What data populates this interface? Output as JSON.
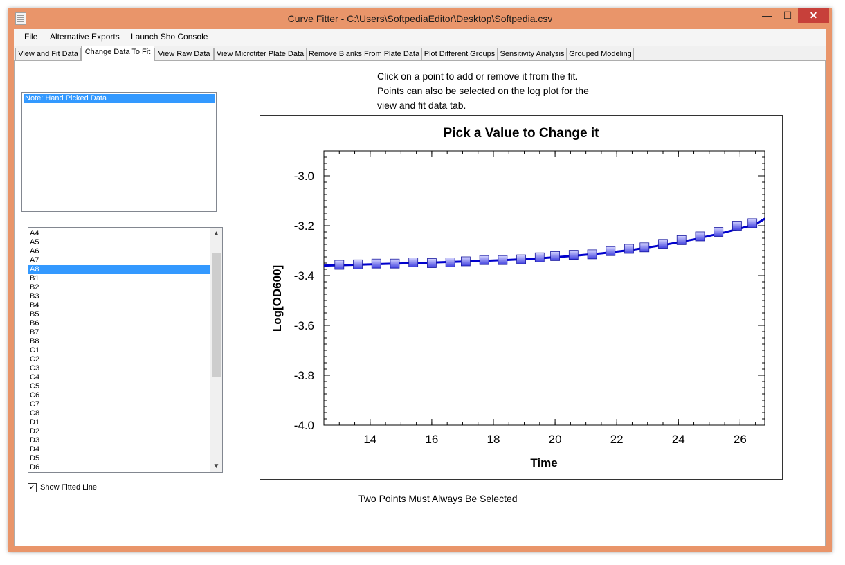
{
  "window": {
    "title": "Curve Fitter - C:\\Users\\SoftpediaEditor\\Desktop\\Softpedia.csv",
    "min_glyph": "—",
    "max_glyph": "☐",
    "close_glyph": "✕",
    "icon": "document-icon"
  },
  "menu": [
    "File",
    "Alternative Exports",
    "Launch Sho Console"
  ],
  "tabs": [
    {
      "label": "View and Fit Data"
    },
    {
      "label": "Change Data To Fit",
      "active": true
    },
    {
      "label": "View Raw Data"
    },
    {
      "label": "View Microtiter Plate Data"
    },
    {
      "label": "Remove Blanks From Plate Data"
    },
    {
      "label": "Plot Different Groups"
    },
    {
      "label": "Sensitivity Analysis"
    },
    {
      "label": "Grouped Modeling"
    }
  ],
  "notes": {
    "selected_item": "Note: Hand Picked Data"
  },
  "wells": {
    "items": [
      "A4",
      "A5",
      "A6",
      "A7",
      "A8",
      "B1",
      "B2",
      "B3",
      "B4",
      "B5",
      "B6",
      "B7",
      "B8",
      "C1",
      "C2",
      "C3",
      "C4",
      "C5",
      "C6",
      "C7",
      "C8",
      "D1",
      "D2",
      "D3",
      "D4",
      "D5",
      "D6"
    ],
    "selected": "A8",
    "scroll_up_glyph": "▲",
    "scroll_down_glyph": "▼"
  },
  "show_fitted_line": {
    "label": "Show Fitted Line",
    "checked": true,
    "check_glyph": "✓"
  },
  "instructions": [
    "Click on a point to add or remove it from the fit.",
    "Points can also be selected on the log plot for the",
    "view and fit data tab."
  ],
  "bottom_note": "Two Points Must Always Be Selected",
  "chart_data": {
    "type": "line",
    "title": "Pick a Value to Change it",
    "xlabel": "Time",
    "ylabel": "Log[OD600]",
    "xlim": [
      12.5,
      26.8
    ],
    "ylim": [
      -4.0,
      -2.9
    ],
    "xticks": [
      14,
      16,
      18,
      20,
      22,
      24,
      26
    ],
    "yticks": [
      -3.0,
      -3.2,
      -3.4,
      -3.6,
      -3.8,
      -4.0
    ],
    "ytick_labels": [
      "-3.0",
      "-3.2",
      "-3.4",
      "-3.6",
      "-3.8",
      "-4.0"
    ],
    "grid": false,
    "line_color": "#0000cc",
    "marker_color": "#8080ff",
    "series": [
      {
        "x": [
          13.0,
          13.6,
          14.2,
          14.8,
          15.4,
          16.0,
          16.6,
          17.1,
          17.7,
          18.3,
          18.9,
          19.5,
          20.0,
          20.6,
          21.2,
          21.8,
          22.4,
          22.9,
          23.5,
          24.1,
          24.7,
          25.3,
          25.9,
          26.4
        ],
        "y": [
          -3.357,
          -3.355,
          -3.352,
          -3.352,
          -3.347,
          -3.35,
          -3.347,
          -3.343,
          -3.338,
          -3.338,
          -3.335,
          -3.327,
          -3.322,
          -3.317,
          -3.315,
          -3.302,
          -3.293,
          -3.287,
          -3.273,
          -3.258,
          -3.243,
          -3.225,
          -3.2,
          -3.19
        ]
      }
    ],
    "fit_line": {
      "x": [
        12.5,
        13.5,
        14.5,
        15.5,
        16.5,
        17.5,
        18.5,
        19.5,
        20.5,
        21.5,
        22.5,
        23.5,
        24.5,
        25.5,
        26.5,
        26.8
      ],
      "y": [
        -3.36,
        -3.357,
        -3.353,
        -3.35,
        -3.346,
        -3.342,
        -3.337,
        -3.331,
        -3.322,
        -3.311,
        -3.297,
        -3.278,
        -3.255,
        -3.227,
        -3.195,
        -3.172
      ]
    }
  }
}
